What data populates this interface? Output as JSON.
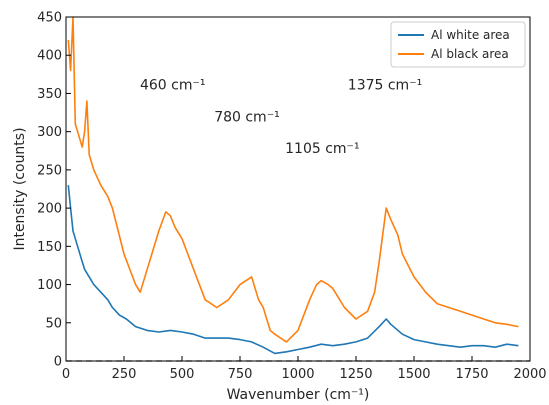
{
  "chart_data": {
    "type": "line",
    "xlabel": "Wavenumber (cm⁻¹)",
    "ylabel": "Intensity (counts)",
    "xlim": [
      0,
      2000
    ],
    "ylim": [
      0,
      450
    ],
    "xticks": [
      0,
      250,
      500,
      750,
      1000,
      1250,
      1500,
      1750,
      2000
    ],
    "yticks": [
      0,
      50,
      100,
      150,
      200,
      250,
      300,
      350,
      400,
      450
    ],
    "grid": false,
    "legend_position": "top-right",
    "series": [
      {
        "name": "Al white area",
        "color": "#1f77b4",
        "x": [
          10,
          20,
          30,
          40,
          50,
          60,
          70,
          80,
          100,
          120,
          150,
          180,
          200,
          230,
          260,
          300,
          350,
          400,
          450,
          500,
          550,
          600,
          650,
          700,
          750,
          800,
          850,
          900,
          950,
          1000,
          1050,
          1100,
          1150,
          1200,
          1250,
          1300,
          1350,
          1380,
          1400,
          1450,
          1500,
          1550,
          1600,
          1650,
          1700,
          1750,
          1800,
          1850,
          1900,
          1950
        ],
        "y": [
          230,
          200,
          170,
          160,
          150,
          140,
          130,
          120,
          110,
          100,
          90,
          80,
          70,
          60,
          55,
          45,
          40,
          38,
          40,
          38,
          35,
          30,
          30,
          30,
          28,
          25,
          18,
          10,
          12,
          15,
          18,
          22,
          20,
          22,
          25,
          30,
          45,
          55,
          48,
          35,
          28,
          25,
          22,
          20,
          18,
          20,
          20,
          18,
          22,
          20
        ]
      },
      {
        "name": "Al black area",
        "color": "#ff7f0e",
        "x": [
          10,
          20,
          30,
          40,
          50,
          60,
          70,
          80,
          90,
          100,
          120,
          150,
          180,
          200,
          250,
          300,
          320,
          350,
          400,
          430,
          450,
          470,
          500,
          550,
          600,
          650,
          700,
          750,
          800,
          830,
          850,
          880,
          900,
          950,
          1000,
          1050,
          1080,
          1100,
          1130,
          1150,
          1200,
          1250,
          1300,
          1330,
          1350,
          1380,
          1400,
          1430,
          1450,
          1500,
          1550,
          1600,
          1650,
          1700,
          1750,
          1800,
          1850,
          1900,
          1950
        ],
        "y": [
          420,
          380,
          450,
          310,
          300,
          290,
          280,
          300,
          340,
          270,
          250,
          230,
          215,
          200,
          140,
          100,
          90,
          120,
          170,
          195,
          190,
          175,
          160,
          120,
          80,
          70,
          80,
          100,
          110,
          80,
          70,
          40,
          35,
          25,
          40,
          80,
          100,
          105,
          100,
          95,
          70,
          55,
          65,
          90,
          130,
          200,
          185,
          165,
          140,
          110,
          90,
          75,
          70,
          65,
          60,
          55,
          50,
          48,
          45
        ]
      }
    ],
    "annotations": [
      {
        "text": "460 cm⁻¹",
        "x": 460,
        "y": 355
      },
      {
        "text": "780 cm⁻¹",
        "x": 780,
        "y": 313
      },
      {
        "text": "1105 cm⁻¹",
        "x": 1105,
        "y": 272
      },
      {
        "text": "1375 cm⁻¹",
        "x": 1375,
        "y": 355
      }
    ]
  }
}
